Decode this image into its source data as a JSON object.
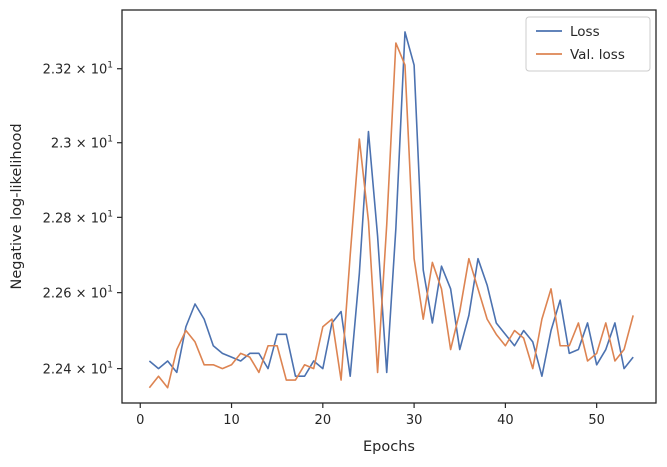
{
  "chart_data": {
    "type": "line",
    "title": "",
    "xlabel": "Epochs",
    "ylabel": "Negative log-likelihood",
    "xlim": [
      -2,
      56.5
    ],
    "ylim": [
      22.31,
      23.36
    ],
    "y_scale": "log",
    "grid": false,
    "legend_position": "top-right",
    "x_ticks": [
      0,
      10,
      20,
      30,
      40,
      50
    ],
    "y_ticks": [
      {
        "value": 22.4,
        "mantissa": "2.24",
        "base": "10",
        "exp": "1"
      },
      {
        "value": 22.6,
        "mantissa": "2.26",
        "base": "10",
        "exp": "1"
      },
      {
        "value": 22.8,
        "mantissa": "2.28",
        "base": "10",
        "exp": "1"
      },
      {
        "value": 23.0,
        "mantissa": "2.3",
        "base": "10",
        "exp": "1"
      },
      {
        "value": 23.2,
        "mantissa": "2.32",
        "base": "10",
        "exp": "1"
      }
    ],
    "x": [
      1,
      2,
      3,
      4,
      5,
      6,
      7,
      8,
      9,
      10,
      11,
      12,
      13,
      14,
      15,
      16,
      17,
      18,
      19,
      20,
      21,
      22,
      23,
      24,
      25,
      26,
      27,
      28,
      29,
      30,
      31,
      32,
      33,
      34,
      35,
      36,
      37,
      38,
      39,
      40,
      41,
      42,
      43,
      44,
      45,
      46,
      47,
      48,
      49,
      50,
      51,
      52,
      53,
      54
    ],
    "series": [
      {
        "name": "Loss",
        "color": "#4c72b0",
        "values": [
          22.42,
          22.4,
          22.42,
          22.39,
          22.51,
          22.57,
          22.53,
          22.46,
          22.44,
          22.43,
          22.42,
          22.44,
          22.44,
          22.4,
          22.49,
          22.49,
          22.38,
          22.38,
          22.42,
          22.4,
          22.52,
          22.55,
          22.38,
          22.65,
          23.03,
          22.75,
          22.39,
          22.77,
          23.3,
          23.21,
          22.66,
          22.52,
          22.67,
          22.61,
          22.45,
          22.54,
          22.69,
          22.62,
          22.52,
          22.49,
          22.46,
          22.5,
          22.47,
          22.38,
          22.5,
          22.58,
          22.44,
          22.45,
          22.52,
          22.41,
          22.45,
          22.52,
          22.4,
          22.43
        ]
      },
      {
        "name": "Val. loss",
        "color": "#dd8452",
        "values": [
          22.35,
          22.38,
          22.35,
          22.45,
          22.5,
          22.47,
          22.41,
          22.41,
          22.4,
          22.41,
          22.44,
          22.43,
          22.39,
          22.46,
          22.46,
          22.37,
          22.37,
          22.41,
          22.4,
          22.51,
          22.53,
          22.37,
          22.7,
          23.01,
          22.79,
          22.39,
          22.78,
          23.27,
          23.21,
          22.69,
          22.53,
          22.68,
          22.61,
          22.45,
          22.55,
          22.69,
          22.61,
          22.53,
          22.49,
          22.46,
          22.5,
          22.48,
          22.4,
          22.53,
          22.61,
          22.46,
          22.46,
          22.52,
          22.42,
          22.44,
          22.52,
          22.42,
          22.45,
          22.54
        ]
      }
    ]
  }
}
